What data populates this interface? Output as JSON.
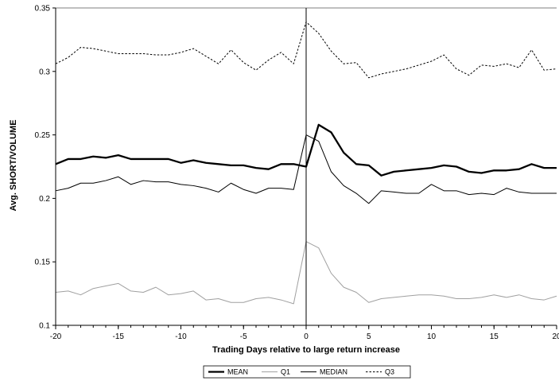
{
  "chart_data": {
    "type": "line",
    "title": "",
    "xlabel": "Trading Days relative to large return increase",
    "ylabel": "Avg. SHORT/VOLUME",
    "xlim": [
      -20,
      20
    ],
    "ylim": [
      0.1,
      0.35
    ],
    "x_ticks": [
      "-20",
      "-15",
      "-10",
      "-5",
      "0",
      "5",
      "10",
      "15",
      "20"
    ],
    "y_ticks": [
      "0.1",
      "0.15",
      "0.2",
      "0.25",
      "0.3",
      "0.35"
    ],
    "x_tick_values": [
      -20,
      -15,
      -10,
      -5,
      0,
      5,
      10,
      15,
      20
    ],
    "y_tick_values": [
      0.1,
      0.15,
      0.2,
      0.25,
      0.3,
      0.35
    ],
    "grid": false,
    "vertical_reference_line": 0,
    "legend_position": "bottom",
    "x": [
      -20,
      -19,
      -18,
      -17,
      -16,
      -15,
      -14,
      -13,
      -12,
      -11,
      -10,
      -9,
      -8,
      -7,
      -6,
      -5,
      -4,
      -3,
      -2,
      -1,
      0,
      1,
      2,
      3,
      4,
      5,
      6,
      7,
      8,
      9,
      10,
      11,
      12,
      13,
      14,
      15,
      16,
      17,
      18,
      19,
      20
    ],
    "series": [
      {
        "name": "MEAN",
        "style": "thick-solid",
        "color": "#000000",
        "values": [
          0.227,
          0.231,
          0.231,
          0.233,
          0.232,
          0.234,
          0.231,
          0.231,
          0.231,
          0.231,
          0.228,
          0.23,
          0.228,
          0.227,
          0.226,
          0.226,
          0.224,
          0.223,
          0.227,
          0.227,
          0.225,
          0.258,
          0.252,
          0.236,
          0.227,
          0.226,
          0.218,
          0.221,
          0.222,
          0.223,
          0.224,
          0.226,
          0.225,
          0.221,
          0.22,
          0.222,
          0.222,
          0.223,
          0.227,
          0.224,
          0.224
        ]
      },
      {
        "name": "Q1",
        "style": "thin-gray",
        "color": "#a0a0a0",
        "values": [
          0.126,
          0.127,
          0.124,
          0.129,
          0.131,
          0.133,
          0.127,
          0.126,
          0.13,
          0.124,
          0.125,
          0.127,
          0.12,
          0.121,
          0.118,
          0.118,
          0.121,
          0.122,
          0.12,
          0.117,
          0.166,
          0.161,
          0.141,
          0.13,
          0.126,
          0.118,
          0.121,
          0.122,
          0.123,
          0.124,
          0.124,
          0.123,
          0.121,
          0.121,
          0.122,
          0.124,
          0.122,
          0.124,
          0.121,
          0.12,
          0.123
        ]
      },
      {
        "name": "MEDIAN",
        "style": "thin-solid",
        "color": "#000000",
        "values": [
          0.206,
          0.208,
          0.212,
          0.212,
          0.214,
          0.217,
          0.211,
          0.214,
          0.213,
          0.213,
          0.211,
          0.21,
          0.208,
          0.205,
          0.212,
          0.207,
          0.204,
          0.208,
          0.208,
          0.207,
          0.25,
          0.245,
          0.221,
          0.21,
          0.204,
          0.196,
          0.206,
          0.205,
          0.204,
          0.204,
          0.211,
          0.206,
          0.206,
          0.203,
          0.204,
          0.203,
          0.208,
          0.205,
          0.204,
          0.204,
          0.204
        ]
      },
      {
        "name": "Q3",
        "style": "dashed",
        "color": "#000000",
        "values": [
          0.306,
          0.311,
          0.319,
          0.318,
          0.316,
          0.314,
          0.314,
          0.314,
          0.313,
          0.313,
          0.315,
          0.318,
          0.312,
          0.306,
          0.317,
          0.307,
          0.301,
          0.309,
          0.315,
          0.306,
          0.339,
          0.33,
          0.316,
          0.306,
          0.307,
          0.295,
          0.298,
          0.3,
          0.302,
          0.305,
          0.308,
          0.313,
          0.302,
          0.297,
          0.305,
          0.304,
          0.306,
          0.303,
          0.317,
          0.301,
          0.302
        ]
      }
    ]
  }
}
